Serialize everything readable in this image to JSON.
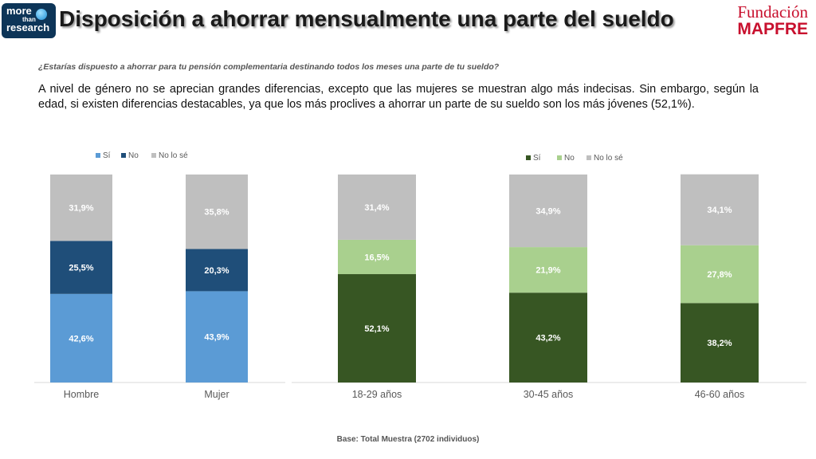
{
  "header": {
    "logo_left": {
      "line1": "more",
      "line2": "than",
      "line3": "research"
    },
    "title": "Disposición a ahorrar mensualmente una parte del sueldo",
    "brand": {
      "line1": "Fundación",
      "line2": "MAPFRE"
    }
  },
  "question": "¿Estarías dispuesto a ahorrar para tu pensión complementaria destinando todos los meses una parte de tu sueldo?",
  "body_text": "A nivel de género no se aprecian grandes diferencias, excepto que las mujeres se muestran algo más indecisas. Sin embargo, según la edad, si existen diferencias destacables, ya que los más proclives a ahorrar un parte de su sueldo son los más jóvenes (52,1%).",
  "base_note": "Base: Total Muestra (2702 individuos)",
  "chart_data": [
    {
      "type": "bar",
      "stacked": true,
      "percent_stacked": true,
      "categories": [
        "Hombre",
        "Mujer"
      ],
      "series": [
        {
          "name": "Sí",
          "color": "#5b9bd5",
          "label_color": "#ffffff",
          "values": [
            42.6,
            43.9
          ],
          "labels": [
            "42,6%",
            "43,9%"
          ]
        },
        {
          "name": "No",
          "color": "#1f4e79",
          "label_color": "#ffffff",
          "values": [
            25.5,
            20.3
          ],
          "labels": [
            "25,5%",
            "20,3%"
          ]
        },
        {
          "name": "No lo sé",
          "color": "#bfbfbf",
          "label_color": "#ffffff",
          "values": [
            31.9,
            35.8
          ],
          "labels": [
            "31,9%",
            "35,8%"
          ]
        }
      ],
      "legend": "top-left",
      "grid": false,
      "ylim": [
        0,
        100
      ]
    },
    {
      "type": "bar",
      "stacked": true,
      "percent_stacked": true,
      "categories": [
        "18-29 años",
        "30-45 años",
        "46-60 años"
      ],
      "series": [
        {
          "name": "Sí",
          "color": "#375623",
          "label_color": "#ffffff",
          "values": [
            52.1,
            43.2,
            38.2
          ],
          "labels": [
            "52,1%",
            "43,2%",
            "38,2%"
          ]
        },
        {
          "name": "No",
          "color": "#a9d08e",
          "label_color": "#ffffff",
          "values": [
            16.5,
            21.9,
            27.8
          ],
          "labels": [
            "16,5%",
            "21,9%",
            "27,8%"
          ]
        },
        {
          "name": "No lo sé",
          "color": "#bfbfbf",
          "label_color": "#ffffff",
          "values": [
            31.4,
            34.9,
            34.1
          ],
          "labels": [
            "31,4%",
            "34,9%",
            "34,1%"
          ]
        }
      ],
      "legend": "top-center",
      "grid": false,
      "ylim": [
        0,
        100
      ]
    }
  ]
}
